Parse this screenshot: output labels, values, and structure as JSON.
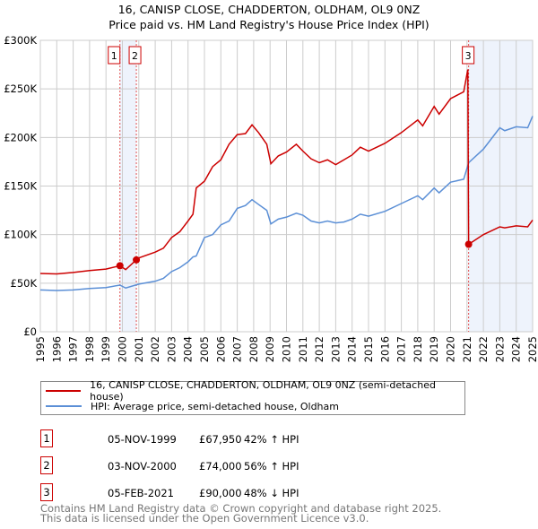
{
  "chart_data": {
    "type": "line",
    "title": "16, CANISP CLOSE, CHADDERTON, OLDHAM, OL9 0NZ",
    "subtitle": "Price paid vs. HM Land Registry's House Price Index (HPI)",
    "xlim": [
      1995,
      2025
    ],
    "ylim": [
      0,
      300000
    ],
    "yticks": [
      {
        "v": 0,
        "label": "£0"
      },
      {
        "v": 50000,
        "label": "£50K"
      },
      {
        "v": 100000,
        "label": "£100K"
      },
      {
        "v": 150000,
        "label": "£150K"
      },
      {
        "v": 200000,
        "label": "£200K"
      },
      {
        "v": 250000,
        "label": "£250K"
      },
      {
        "v": 300000,
        "label": "£300K"
      }
    ],
    "xticks": [
      "1995",
      "1996",
      "1997",
      "1998",
      "1999",
      "2000",
      "2001",
      "2002",
      "2003",
      "2004",
      "2005",
      "2006",
      "2007",
      "2008",
      "2009",
      "2010",
      "2011",
      "2012",
      "2013",
      "2014",
      "2015",
      "2016",
      "2017",
      "2018",
      "2019",
      "2020",
      "2021",
      "2022",
      "2023",
      "2024",
      "2025"
    ],
    "grid": true,
    "series": [
      {
        "name": "16, CANISP CLOSE, CHADDERTON, OLDHAM, OL9 0NZ (semi-detached house)",
        "color": "#cc0000",
        "x": [
          1995,
          1996,
          1997,
          1998,
          1999,
          1999.85,
          2000.2,
          2000.85,
          2001,
          2002,
          2002.5,
          2003,
          2003.5,
          2004,
          2004.3,
          2004.5,
          2005,
          2005.5,
          2006,
          2006.5,
          2007,
          2007.5,
          2007.9,
          2008.3,
          2008.8,
          2009.05,
          2009.5,
          2010,
          2010.6,
          2011,
          2011.5,
          2012,
          2012.5,
          2013,
          2013.5,
          2014,
          2014.5,
          2015,
          2016,
          2017,
          2018,
          2018.3,
          2019,
          2019.3,
          2020,
          2020.8,
          2021.05,
          2021.1,
          2022,
          2023,
          2023.3,
          2024,
          2024.7,
          2025
        ],
        "y": [
          60000,
          59500,
          61000,
          63000,
          64500,
          67950,
          64000,
          74000,
          76000,
          82000,
          86000,
          97000,
          103000,
          114000,
          121000,
          148000,
          155000,
          170000,
          177000,
          193000,
          203000,
          204000,
          213000,
          205000,
          193000,
          173000,
          181000,
          185000,
          193000,
          186000,
          178000,
          174000,
          177000,
          172000,
          177000,
          182000,
          190000,
          186000,
          194000,
          205000,
          218000,
          212000,
          232000,
          224000,
          240000,
          247000,
          270000,
          90000,
          100000,
          108000,
          107000,
          109000,
          108000,
          115000
        ]
      },
      {
        "name": "HPI: Average price, semi-detached house, Oldham",
        "color": "#5b8fd6",
        "x": [
          1995,
          1996,
          1997,
          1998,
          1999,
          1999.85,
          2000.2,
          2001,
          2002,
          2002.5,
          2003,
          2003.5,
          2004,
          2004.3,
          2004.5,
          2005,
          2005.5,
          2006,
          2006.5,
          2007,
          2007.5,
          2007.9,
          2008.3,
          2008.8,
          2009.05,
          2009.5,
          2010,
          2010.6,
          2011,
          2011.5,
          2012,
          2012.5,
          2013,
          2013.5,
          2014,
          2014.5,
          2015,
          2016,
          2017,
          2018,
          2018.3,
          2019,
          2019.3,
          2020,
          2020.8,
          2021.1,
          2022,
          2023,
          2023.3,
          2024,
          2024.7,
          2025
        ],
        "y": [
          43000,
          42500,
          43000,
          44500,
          45500,
          48000,
          45000,
          49000,
          52000,
          55000,
          62000,
          66000,
          72000,
          77000,
          78000,
          97000,
          100000,
          110000,
          114000,
          127000,
          130000,
          136000,
          131000,
          125000,
          111000,
          116000,
          118000,
          122000,
          120000,
          114000,
          112000,
          114000,
          112000,
          113000,
          116000,
          121000,
          119000,
          124000,
          132000,
          140000,
          136000,
          148000,
          143000,
          154000,
          157000,
          174000,
          188000,
          210000,
          207000,
          211000,
          210000,
          222000
        ]
      }
    ],
    "sales": [
      {
        "num": "1",
        "date": "05-NOV-1999",
        "x": 1999.85,
        "price": "£67,950",
        "value": 67950,
        "hpi": "42% ↑ HPI"
      },
      {
        "num": "2",
        "date": "03-NOV-2000",
        "x": 2000.85,
        "price": "£74,000",
        "value": 74000,
        "hpi": "56% ↑ HPI"
      },
      {
        "num": "3",
        "date": "05-FEB-2021",
        "x": 2021.1,
        "price": "£90,000",
        "value": 90000,
        "hpi": "48% ↓ HPI"
      }
    ],
    "shaded_ranges": [
      [
        1999.85,
        2000.85
      ],
      [
        2021.1,
        2025
      ]
    ]
  },
  "footer": [
    "Contains HM Land Registry data © Crown copyright and database right 2025.",
    "This data is licensed under the Open Government Licence v3.0."
  ]
}
